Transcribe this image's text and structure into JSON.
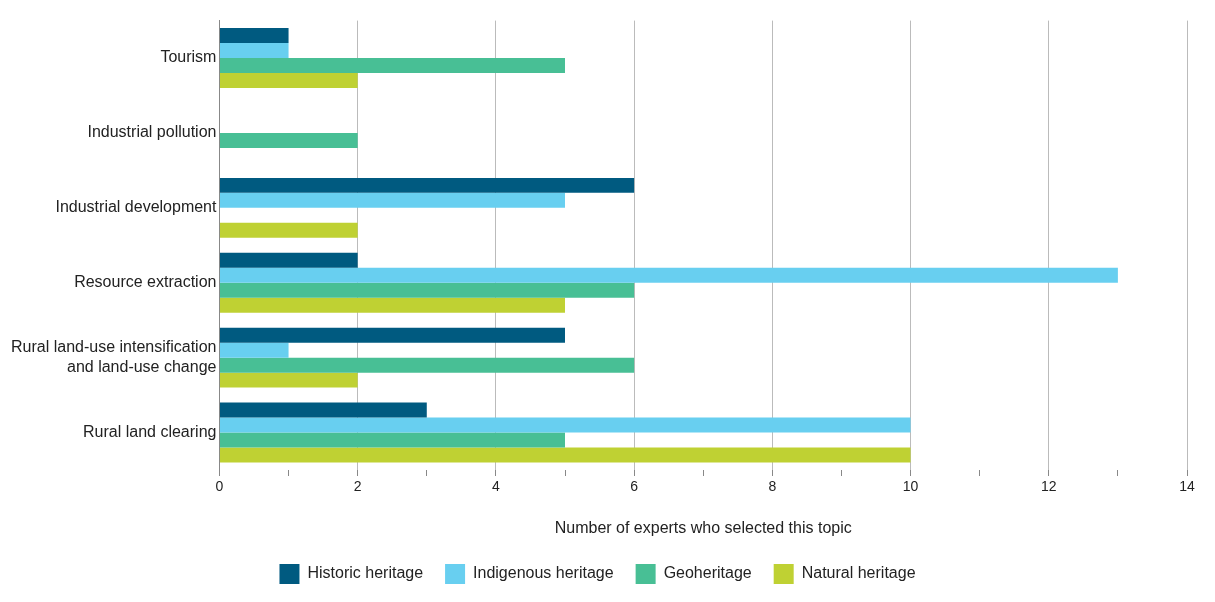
{
  "chart_data": {
    "type": "bar",
    "orientation": "horizontal",
    "xlabel": "Number of experts who selected this topic",
    "categories": [
      "Tourism",
      "Industrial pollution",
      "Industrial development",
      "Resource extraction",
      "Rural land-use intensification and land-use change",
      "Rural land clearing"
    ],
    "series": [
      {
        "name": "Historic heritage",
        "color": "#005a80",
        "values": [
          1,
          null,
          6,
          2,
          5,
          3
        ]
      },
      {
        "name": "Indigenous heritage",
        "color": "#68cff0",
        "values": [
          1,
          null,
          5,
          13,
          1,
          10
        ]
      },
      {
        "name": "Geoheritage",
        "color": "#48bf95",
        "values": [
          5,
          2,
          null,
          6,
          6,
          5
        ]
      },
      {
        "name": "Natural heritage",
        "color": "#bfd133",
        "values": [
          2,
          null,
          2,
          5,
          2,
          10
        ]
      }
    ],
    "xlim": [
      0,
      14
    ],
    "xticks": [
      0,
      {
        "value": 1,
        "label": null
      },
      2,
      {
        "value": 3,
        "label": null
      },
      4,
      {
        "value": 5,
        "label": null
      },
      6,
      {
        "value": 7,
        "label": null
      },
      8,
      {
        "value": 9,
        "label": null
      },
      10,
      {
        "value": 11,
        "label": null
      },
      12,
      {
        "value": 13,
        "label": null
      },
      14
    ],
    "grid": "x",
    "legend": "bottom"
  }
}
